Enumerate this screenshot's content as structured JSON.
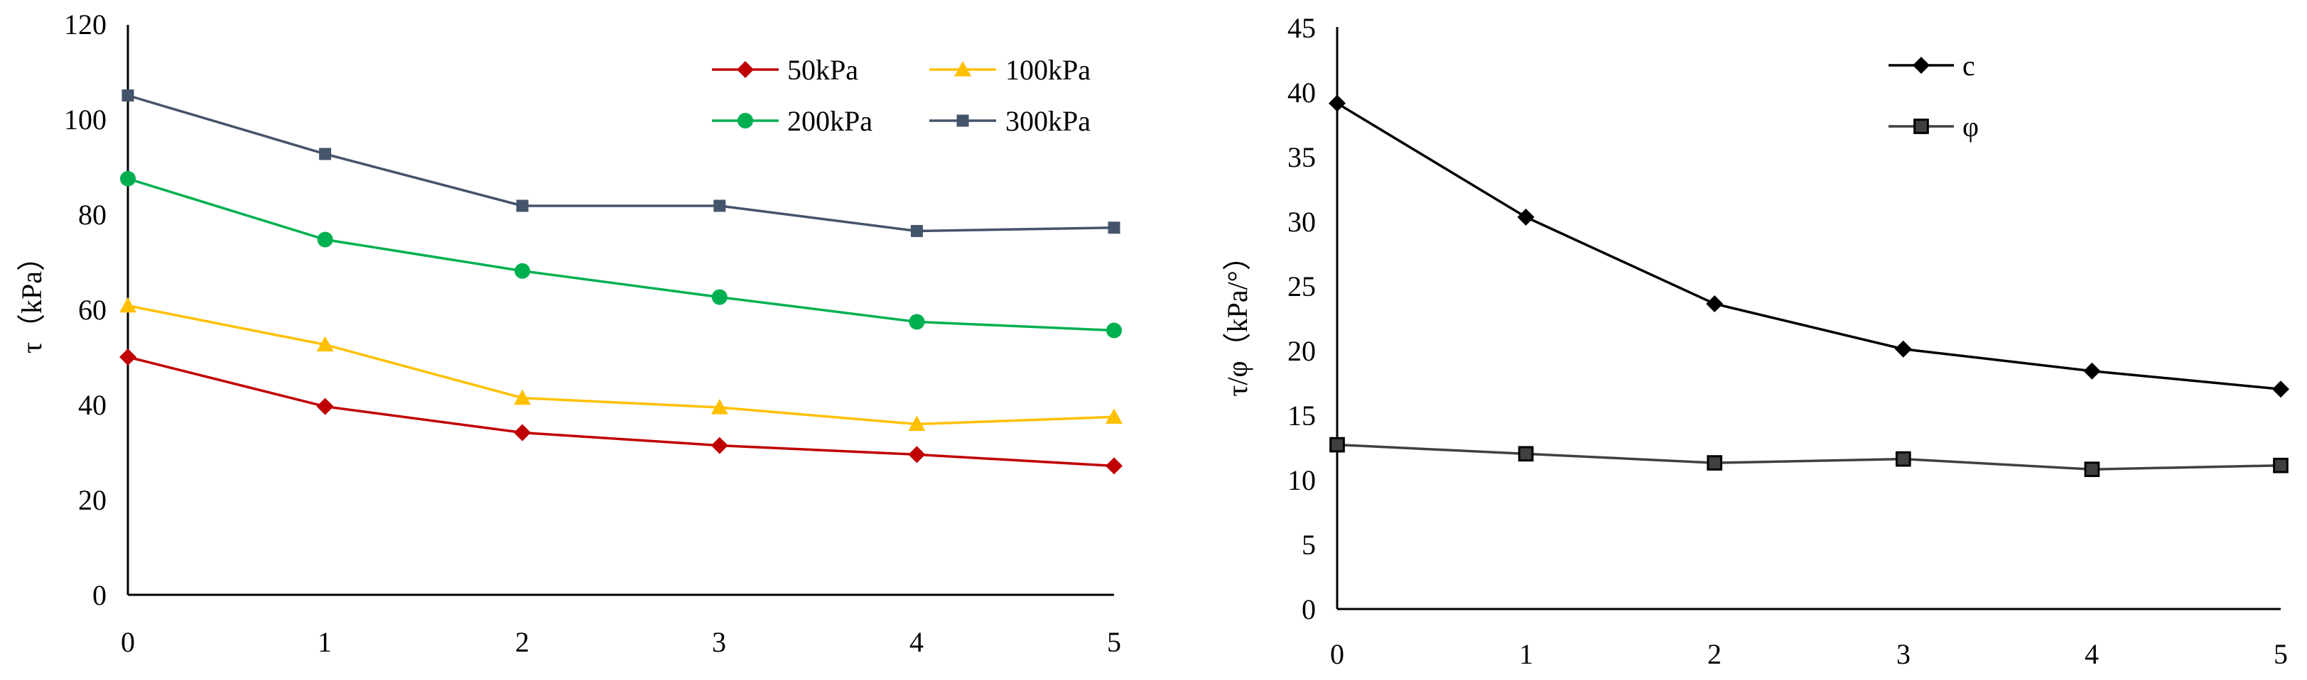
{
  "chart_data": [
    {
      "type": "line",
      "title": "",
      "xlabel": "",
      "ylabel": "τ（kPa）",
      "x": [
        0,
        1,
        2,
        3,
        4,
        5
      ],
      "xticks": [
        "0",
        "1",
        "2",
        "3",
        "4",
        "5"
      ],
      "ylim": [
        0,
        120
      ],
      "yticks": [
        "0",
        "20",
        "40",
        "60",
        "80",
        "100",
        "120"
      ],
      "grid": false,
      "legend_position": "top-right",
      "series": [
        {
          "name": "50kPa",
          "color": "#c00000",
          "marker": "diamond",
          "values": [
            50.0,
            39.6,
            34.1,
            31.4,
            29.5,
            27.1
          ]
        },
        {
          "name": "100kPa",
          "color": "#ffc000",
          "marker": "triangle",
          "values": [
            60.8,
            52.6,
            41.4,
            39.4,
            35.9,
            37.4
          ]
        },
        {
          "name": "200kPa",
          "color": "#00b050",
          "marker": "circle",
          "values": [
            87.5,
            74.7,
            68.1,
            62.6,
            57.4,
            55.6
          ]
        },
        {
          "name": "300kPa",
          "color": "#44546a",
          "marker": "square",
          "values": [
            105.0,
            92.7,
            81.8,
            81.8,
            76.5,
            77.2
          ]
        }
      ]
    },
    {
      "type": "line",
      "title": "",
      "xlabel": "",
      "ylabel": "τ/φ（kPa/°）",
      "x": [
        0,
        1,
        2,
        3,
        4,
        5
      ],
      "xticks": [
        "0",
        "1",
        "2",
        "3",
        "4",
        "5"
      ],
      "ylim": [
        0,
        45
      ],
      "yticks": [
        "0",
        "5",
        "10",
        "15",
        "20",
        "25",
        "30",
        "35",
        "40",
        "45"
      ],
      "grid": false,
      "legend_position": "top-center",
      "series": [
        {
          "name": "c",
          "color": "#000000",
          "marker": "diamond",
          "values": [
            39.1,
            30.3,
            23.6,
            20.1,
            18.4,
            17.0
          ]
        },
        {
          "name": "φ",
          "color": "#404040",
          "marker": "square",
          "values": [
            12.7,
            12.0,
            11.3,
            11.6,
            10.8,
            11.1
          ]
        }
      ]
    }
  ]
}
